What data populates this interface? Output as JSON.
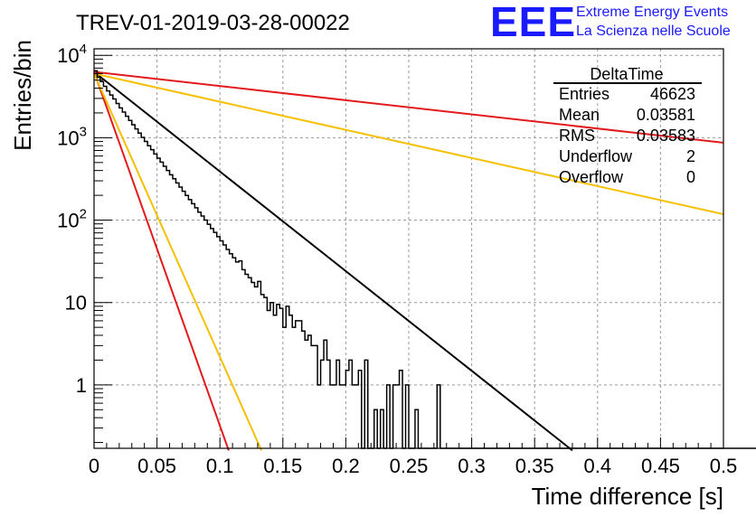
{
  "chart_data": {
    "type": "line",
    "title": "TREV-01-2019-03-28-00022",
    "xlabel": "Time difference [s]",
    "ylabel": "Entries/bin",
    "xlim": [
      0,
      0.5
    ],
    "ylim": [
      0.17,
      12000
    ],
    "y_scale": "log",
    "grid": true,
    "x_ticks": [
      "0",
      "0.05",
      "0.1",
      "0.15",
      "0.2",
      "0.25",
      "0.3",
      "0.35",
      "0.4",
      "0.45",
      "0.5"
    ],
    "x_tick_values": [
      0,
      0.05,
      0.1,
      0.15,
      0.2,
      0.25,
      0.3,
      0.35,
      0.4,
      0.45,
      0.5
    ],
    "y_ticks": [
      {
        "value": 10000,
        "base": "10",
        "exp": "4"
      },
      {
        "value": 1000,
        "base": "10",
        "exp": "3"
      },
      {
        "value": 100,
        "base": "10",
        "exp": "2"
      },
      {
        "value": 10,
        "base": "10",
        "exp": ""
      },
      {
        "value": 1,
        "base": "1",
        "exp": ""
      }
    ],
    "histogram": {
      "name": "DeltaTime",
      "color": "#000000",
      "bin_width": 0.0025,
      "values": [
        6500,
        5400,
        4800,
        4200,
        3700,
        3300,
        2950,
        2600,
        2300,
        2050,
        1820,
        1620,
        1440,
        1280,
        1140,
        1010,
        900,
        800,
        715,
        635,
        565,
        505,
        450,
        400,
        355,
        318,
        283,
        252,
        224,
        199,
        177,
        158,
        141,
        125,
        112,
        100,
        89,
        79,
        71,
        63,
        56,
        50,
        44,
        39,
        35,
        31,
        32,
        25,
        22,
        20,
        17.5,
        15.5,
        18,
        12.5,
        11.5,
        8,
        10,
        7,
        9.5,
        8.5,
        5,
        9,
        7,
        5,
        6,
        6,
        4.5,
        3.5,
        4,
        3,
        3,
        1,
        2,
        3.5,
        2,
        1,
        1,
        2,
        1,
        1,
        1.5,
        2,
        1,
        1,
        1.5,
        0,
        2,
        0,
        0,
        0.5,
        0,
        0.5,
        0,
        1,
        0,
        1,
        1,
        1.5,
        0,
        1,
        0,
        0,
        0.5,
        0,
        0,
        0,
        0,
        0,
        0,
        1,
        0,
        0,
        0,
        0,
        0,
        0,
        0,
        0,
        0,
        0,
        0,
        0,
        0,
        0,
        0,
        0,
        0,
        0,
        0,
        0,
        0,
        0,
        0,
        0,
        0,
        0,
        0,
        0,
        0,
        0,
        0,
        0,
        0,
        0,
        0,
        0,
        0,
        0,
        0,
        0,
        0,
        0,
        0,
        0,
        0,
        0,
        0,
        0,
        0,
        0,
        0,
        0,
        0,
        0,
        0,
        0,
        0,
        0,
        0,
        0,
        0,
        0,
        0,
        0,
        0,
        0,
        0,
        0,
        0,
        0,
        0,
        0,
        0,
        0,
        0,
        0,
        0,
        0,
        0,
        0,
        0,
        0,
        0,
        0,
        0,
        0,
        0,
        0,
        0,
        0,
        0,
        0,
        0,
        0,
        0,
        0,
        0,
        0,
        0,
        0,
        0,
        0
      ]
    },
    "fit_lines": [
      {
        "color": "#000000",
        "x": [
          0,
          0.38
        ],
        "y": [
          6300,
          0.16
        ]
      },
      {
        "color": "#e31a1c",
        "x": [
          0,
          0.5
        ],
        "y": [
          6300,
          870
        ]
      },
      {
        "color": "#f5c000",
        "x": [
          0,
          0.5
        ],
        "y": [
          6000,
          118
        ]
      },
      {
        "color": "#e31a1c",
        "x": [
          0,
          0.107
        ],
        "y": [
          6300,
          0.16
        ]
      },
      {
        "color": "#f5c000",
        "x": [
          0,
          0.133
        ],
        "y": [
          6000,
          0.16
        ]
      }
    ],
    "stats": {
      "title": "DeltaTime",
      "rows": [
        {
          "label": "Entries",
          "value": "46623"
        },
        {
          "label": "Mean",
          "value": "0.03581"
        },
        {
          "label": "RMS",
          "value": "0.03583"
        },
        {
          "label": "Underflow",
          "value": "2"
        },
        {
          "label": "Overflow",
          "value": "0"
        }
      ]
    }
  },
  "logo": {
    "acronym": "EEE",
    "line1": "Extreme Energy Events",
    "line2": "La Scienza nelle Scuole",
    "color": "#1a1aff"
  }
}
